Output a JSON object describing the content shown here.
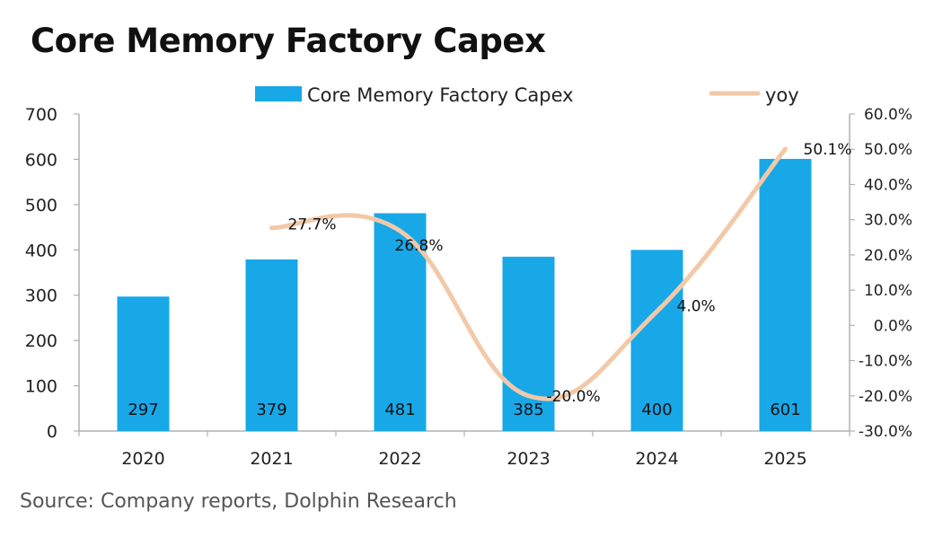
{
  "title": "Core Memory Factory Capex",
  "source": "Source: Company reports, Dolphin Research",
  "colors": {
    "bar": "#18a8e8",
    "line": "#f2c9a8",
    "axis": "#b0b0b0"
  },
  "chart_data": {
    "type": "bar",
    "categories": [
      "2020",
      "2021",
      "2022",
      "2023",
      "2024",
      "2025"
    ],
    "series": [
      {
        "name": "Core Memory Factory Capex",
        "type": "bar",
        "axis": "left",
        "values": [
          297,
          379,
          481,
          385,
          400,
          601
        ],
        "labels": [
          "297",
          "379",
          "481",
          "385",
          "400",
          "601"
        ]
      },
      {
        "name": "yoy",
        "type": "line",
        "axis": "right",
        "values": [
          null,
          27.7,
          26.8,
          -20.0,
          4.0,
          50.1
        ],
        "labels": [
          "",
          "27.7%",
          "26.8%",
          "-20.0%",
          "4.0%",
          "50.1%"
        ]
      }
    ],
    "ylim_left": [
      0,
      700
    ],
    "yticks_left": [
      "0",
      "100",
      "200",
      "300",
      "400",
      "500",
      "600",
      "700"
    ],
    "ylim_right": [
      -30,
      60
    ],
    "yticks_right": [
      "-30.0%",
      "-20.0%",
      "-10.0%",
      "0.0%",
      "10.0%",
      "20.0%",
      "30.0%",
      "40.0%",
      "50.0%",
      "60.0%"
    ],
    "grid": false,
    "legend": "top"
  }
}
